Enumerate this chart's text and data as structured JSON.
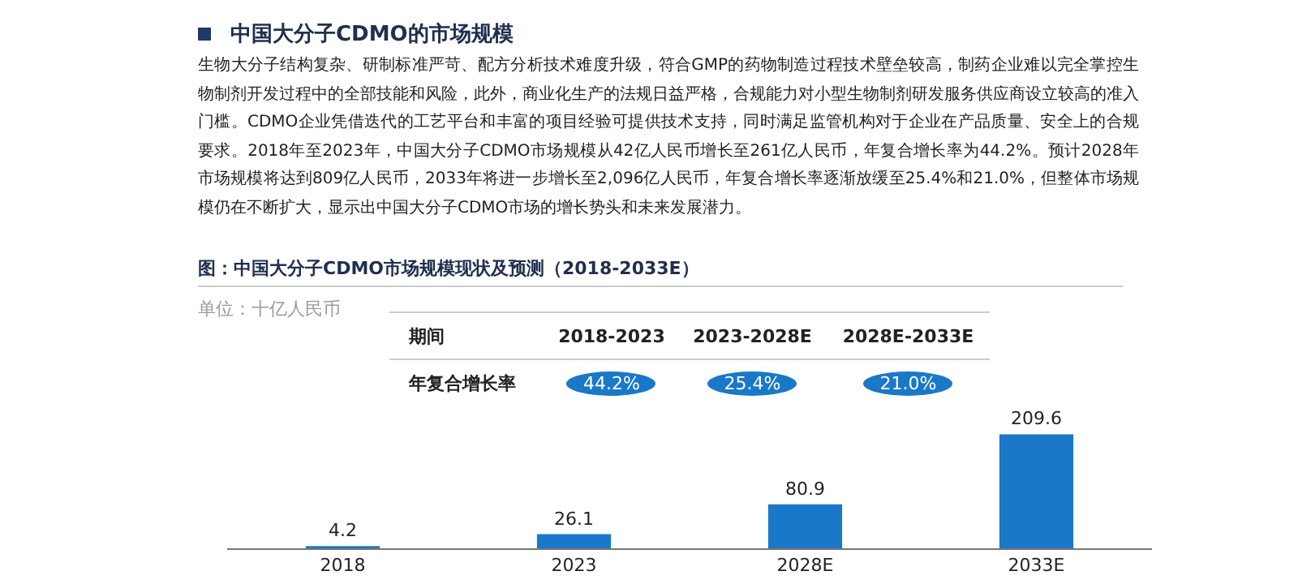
{
  "chart_data": {
    "type": "bar",
    "title": "图：中国大分子CDMO市场规模现状及预测（2018-2033E）",
    "categories": [
      "2018",
      "2023",
      "2028E",
      "2033E"
    ],
    "values": [
      4.2,
      26.1,
      80.9,
      209.6
    ],
    "color": "#1a78c8",
    "data_labels": true,
    "annotations": [
      "中国大分子CDMO的市场规模",
      "生物大分子结构复杂、研制标准严苛、配方分析技术难度升级，符合GMP的药物制造过程技术壁垒较高，制药企业难以完全掌控生物制剂开发过程中的全部技能和风险，此外，商业化生产的法规日益严格，合规能力对小型生物制剂研发服务供应商设立较高的准入门槛。CDMO企业凭借迭代的工艺平台和丰富的项目经验可提供技术支持，同时满足监管机构对于企业在产品质量、安全上的合规要求。2018年至2023年，中国大分子CDMO市场规模从42亿人民币增长至261亿人民币，年复合增长率为44.2%。预计2028年市场规模将达到809亿人民币，2033年将进一步增长至2,096亿人民币，年复合增长率逐渐放缓至25.4%和21.0%，但整体市场规模仍在不断扩大，显示出中国大分子CDMO市场的增长势头和未来发展潜力。",
      "单位：十亿人民币",
      "期间",
      "2018-2023",
      "2023-2028E",
      "2028E-2033E",
      "年复合增长率",
      "44.2%",
      "25.4%",
      "21.0%"
    ]
  }
}
